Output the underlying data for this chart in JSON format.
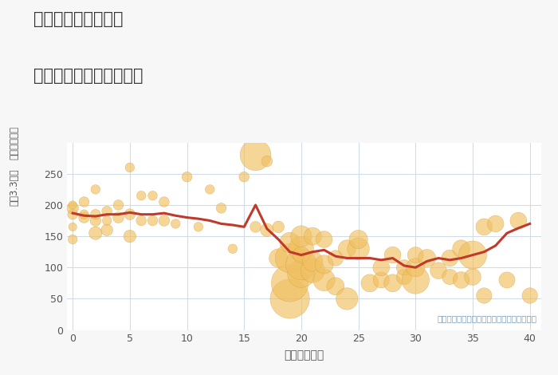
{
  "title_line1": "東京都立川市錦町の",
  "title_line2": "築年数別中古戸建て価格",
  "xlabel": "築年数（年）",
  "ylabel_top": "単価（万円）",
  "ylabel_mid": "坪（3.3㎡）",
  "annotation": "円の大きさは、取引のあった物件面積を示す",
  "bg_color": "#f7f7f7",
  "plot_bg_color": "#ffffff",
  "grid_color": "#d0dde8",
  "scatter_color": "#f0c060",
  "scatter_alpha": 0.65,
  "scatter_edge_color": "#d4953a",
  "line_color": "#c0392b",
  "line_width": 2.2,
  "xlim": [
    -0.5,
    41
  ],
  "ylim": [
    0,
    300
  ],
  "xticks": [
    0,
    5,
    10,
    15,
    20,
    25,
    30,
    35,
    40
  ],
  "yticks": [
    0,
    50,
    100,
    150,
    200,
    250
  ],
  "scatter_x": [
    0,
    0,
    0,
    0,
    0,
    1,
    1,
    1,
    2,
    2,
    2,
    2,
    3,
    3,
    3,
    4,
    4,
    5,
    5,
    5,
    6,
    6,
    7,
    7,
    8,
    8,
    9,
    10,
    11,
    12,
    13,
    14,
    15,
    16,
    16,
    17,
    17,
    18,
    18,
    19,
    19,
    19,
    19,
    20,
    20,
    20,
    20,
    20,
    21,
    21,
    21,
    22,
    22,
    22,
    23,
    23,
    24,
    24,
    25,
    25,
    26,
    27,
    27,
    28,
    28,
    29,
    29,
    30,
    30,
    30,
    31,
    32,
    33,
    33,
    34,
    34,
    35,
    35,
    36,
    36,
    37,
    38,
    39,
    40
  ],
  "scatter_y": [
    185,
    195,
    200,
    145,
    165,
    180,
    185,
    205,
    155,
    175,
    185,
    225,
    160,
    175,
    190,
    180,
    200,
    150,
    185,
    260,
    175,
    215,
    175,
    215,
    175,
    205,
    170,
    245,
    165,
    225,
    195,
    130,
    245,
    280,
    165,
    160,
    270,
    115,
    165,
    50,
    75,
    115,
    140,
    90,
    105,
    130,
    150,
    120,
    95,
    110,
    150,
    80,
    105,
    145,
    70,
    115,
    50,
    130,
    130,
    145,
    75,
    80,
    100,
    75,
    120,
    85,
    100,
    80,
    100,
    120,
    115,
    95,
    115,
    85,
    130,
    80,
    85,
    120,
    55,
    165,
    170,
    80,
    175,
    55
  ],
  "scatter_size": [
    30,
    40,
    20,
    25,
    20,
    35,
    25,
    30,
    50,
    35,
    30,
    25,
    40,
    25,
    30,
    35,
    30,
    45,
    35,
    25,
    30,
    25,
    30,
    25,
    35,
    30,
    25,
    30,
    25,
    25,
    30,
    25,
    30,
    280,
    35,
    50,
    35,
    100,
    40,
    450,
    400,
    250,
    120,
    220,
    280,
    180,
    130,
    80,
    170,
    120,
    90,
    140,
    100,
    80,
    90,
    70,
    140,
    90,
    140,
    100,
    90,
    75,
    80,
    90,
    80,
    70,
    70,
    220,
    100,
    75,
    90,
    80,
    80,
    70,
    90,
    80,
    80,
    230,
    70,
    80,
    80,
    75,
    80,
    70
  ],
  "line_x": [
    0,
    1,
    2,
    3,
    4,
    5,
    6,
    7,
    8,
    9,
    10,
    11,
    12,
    13,
    14,
    15,
    16,
    17,
    18,
    19,
    20,
    21,
    22,
    23,
    24,
    25,
    26,
    27,
    28,
    29,
    30,
    31,
    32,
    33,
    34,
    35,
    36,
    37,
    38,
    39,
    40
  ],
  "line_y": [
    187,
    183,
    182,
    185,
    185,
    188,
    185,
    185,
    187,
    183,
    180,
    178,
    175,
    170,
    168,
    165,
    200,
    162,
    145,
    125,
    120,
    125,
    128,
    118,
    115,
    115,
    115,
    112,
    115,
    103,
    100,
    110,
    115,
    112,
    115,
    120,
    125,
    135,
    155,
    163,
    170
  ]
}
